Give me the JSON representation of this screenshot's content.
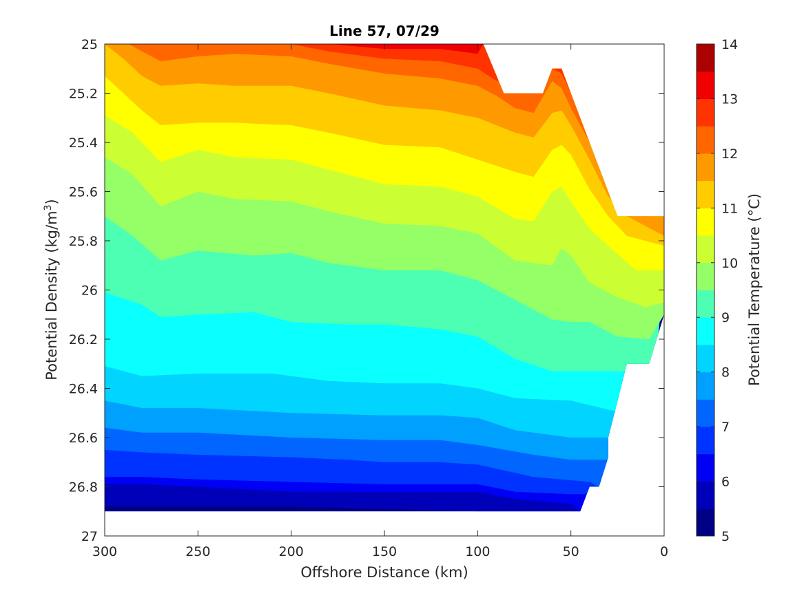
{
  "chart_data": {
    "type": "filled-contour",
    "title": "Line 57, 07/29",
    "xlabel": "Offshore Distance (km)",
    "ylabel": "Potential Density (kg/m",
    "ylabel_sup": "3",
    "ylabel_close": ")",
    "colorbar_label": "Potential Temperature (°C)",
    "x_reversed": true,
    "y_reversed": true,
    "xlim": [
      0,
      300
    ],
    "ylim": [
      25,
      27
    ],
    "x_ticks": [
      "300",
      "250",
      "200",
      "150",
      "100",
      "50",
      "0"
    ],
    "y_ticks": [
      "25",
      "25.2",
      "25.4",
      "25.6",
      "25.8",
      "26",
      "26.2",
      "26.4",
      "26.6",
      "26.8",
      "27"
    ],
    "colorbar_ticks": [
      "5",
      "6",
      "7",
      "8",
      "9",
      "10",
      "11",
      "12",
      "13",
      "14"
    ],
    "colorbar_range": [
      5,
      14
    ],
    "levels_step": 0.5,
    "colors": [
      "#000085",
      "#0000b8",
      "#0000f5",
      "#0033ff",
      "#0066ff",
      "#00a0ff",
      "#00d4ff",
      "#0affff",
      "#4dffb3",
      "#94ff66",
      "#ccff33",
      "#ffff00",
      "#ffcc00",
      "#ff9900",
      "#ff6600",
      "#ff3300",
      "#f00000",
      "#ad0000"
    ],
    "data_envelope": [
      [
        300,
        25.0
      ],
      [
        97,
        25.0
      ],
      [
        86,
        25.2
      ],
      [
        65,
        25.2
      ],
      [
        60,
        25.1
      ],
      [
        55,
        25.1
      ],
      [
        25,
        25.7
      ],
      [
        0,
        25.7
      ],
      [
        0,
        26.1
      ],
      [
        8,
        26.3
      ],
      [
        20,
        26.3
      ],
      [
        30,
        26.6
      ],
      [
        30,
        26.68
      ],
      [
        35,
        26.8
      ],
      [
        40,
        26.8
      ],
      [
        45,
        26.9
      ],
      [
        300,
        26.9
      ]
    ],
    "isotherms": [
      {
        "temp": 5.5,
        "points": [
          [
            300,
            26.88
          ],
          [
            200,
            26.88
          ],
          [
            150,
            26.89
          ],
          [
            100,
            26.9
          ],
          [
            45,
            26.9
          ]
        ]
      },
      {
        "temp": 6.0,
        "points": [
          [
            300,
            26.79
          ],
          [
            280,
            26.79
          ],
          [
            250,
            26.8
          ],
          [
            200,
            26.82
          ],
          [
            150,
            26.82
          ],
          [
            100,
            26.82
          ],
          [
            80,
            26.85
          ],
          [
            50,
            26.87
          ],
          [
            45,
            26.9
          ]
        ]
      },
      {
        "temp": 6.5,
        "points": [
          [
            300,
            26.76
          ],
          [
            280,
            26.76
          ],
          [
            250,
            26.77
          ],
          [
            200,
            26.78
          ],
          [
            150,
            26.79
          ],
          [
            100,
            26.79
          ],
          [
            80,
            26.82
          ],
          [
            50,
            26.83
          ],
          [
            38,
            26.83
          ],
          [
            35,
            26.83
          ]
        ]
      },
      {
        "temp": 7.0,
        "points": [
          [
            300,
            26.65
          ],
          [
            280,
            26.66
          ],
          [
            250,
            26.67
          ],
          [
            200,
            26.68
          ],
          [
            170,
            26.69
          ],
          [
            150,
            26.7
          ],
          [
            120,
            26.7
          ],
          [
            100,
            26.71
          ],
          [
            70,
            26.76
          ],
          [
            40,
            26.78
          ],
          [
            35,
            26.8
          ]
        ]
      },
      {
        "temp": 7.5,
        "points": [
          [
            300,
            26.56
          ],
          [
            280,
            26.58
          ],
          [
            250,
            26.58
          ],
          [
            200,
            26.6
          ],
          [
            150,
            26.61
          ],
          [
            120,
            26.61
          ],
          [
            100,
            26.63
          ],
          [
            70,
            26.67
          ],
          [
            50,
            26.69
          ],
          [
            33,
            26.69
          ]
        ]
      },
      {
        "temp": 8.0,
        "points": [
          [
            300,
            26.45
          ],
          [
            280,
            26.48
          ],
          [
            250,
            26.48
          ],
          [
            200,
            26.5
          ],
          [
            150,
            26.51
          ],
          [
            120,
            26.51
          ],
          [
            100,
            26.52
          ],
          [
            80,
            26.57
          ],
          [
            50,
            26.6
          ],
          [
            30,
            26.6
          ]
        ]
      },
      {
        "temp": 8.5,
        "points": [
          [
            300,
            26.31
          ],
          [
            280,
            26.35
          ],
          [
            250,
            26.34
          ],
          [
            210,
            26.34
          ],
          [
            180,
            26.37
          ],
          [
            150,
            26.38
          ],
          [
            120,
            26.38
          ],
          [
            100,
            26.4
          ],
          [
            80,
            26.44
          ],
          [
            50,
            26.45
          ],
          [
            28,
            26.49
          ]
        ]
      },
      {
        "temp": 9.0,
        "points": [
          [
            300,
            26.01
          ],
          [
            280,
            26.06
          ],
          [
            270,
            26.11
          ],
          [
            250,
            26.1
          ],
          [
            220,
            26.09
          ],
          [
            200,
            26.13
          ],
          [
            170,
            26.14
          ],
          [
            150,
            26.14
          ],
          [
            120,
            26.16
          ],
          [
            100,
            26.19
          ],
          [
            80,
            26.28
          ],
          [
            60,
            26.33
          ],
          [
            40,
            26.33
          ],
          [
            20,
            26.33
          ]
        ]
      },
      {
        "temp": 9.5,
        "points": [
          [
            300,
            25.7
          ],
          [
            285,
            25.78
          ],
          [
            270,
            25.88
          ],
          [
            250,
            25.84
          ],
          [
            220,
            25.86
          ],
          [
            200,
            25.85
          ],
          [
            180,
            25.89
          ],
          [
            150,
            25.92
          ],
          [
            120,
            25.92
          ],
          [
            100,
            25.96
          ],
          [
            80,
            26.04
          ],
          [
            60,
            26.12
          ],
          [
            50,
            26.13
          ],
          [
            40,
            26.13
          ],
          [
            25,
            26.19
          ],
          [
            8,
            26.2
          ],
          [
            0,
            26.1
          ]
        ]
      },
      {
        "temp": 10.0,
        "points": [
          [
            300,
            25.46
          ],
          [
            285,
            25.53
          ],
          [
            270,
            25.66
          ],
          [
            250,
            25.6
          ],
          [
            230,
            25.63
          ],
          [
            200,
            25.64
          ],
          [
            180,
            25.68
          ],
          [
            150,
            25.73
          ],
          [
            120,
            25.74
          ],
          [
            100,
            25.77
          ],
          [
            80,
            25.88
          ],
          [
            60,
            25.9
          ],
          [
            55,
            25.83
          ],
          [
            50,
            25.86
          ],
          [
            40,
            25.97
          ],
          [
            25,
            26.03
          ],
          [
            10,
            26.07
          ],
          [
            0,
            26.05
          ]
        ]
      },
      {
        "temp": 10.5,
        "points": [
          [
            300,
            25.29
          ],
          [
            285,
            25.36
          ],
          [
            270,
            25.48
          ],
          [
            250,
            25.43
          ],
          [
            230,
            25.46
          ],
          [
            200,
            25.47
          ],
          [
            180,
            25.51
          ],
          [
            150,
            25.57
          ],
          [
            120,
            25.58
          ],
          [
            100,
            25.62
          ],
          [
            80,
            25.71
          ],
          [
            70,
            25.72
          ],
          [
            60,
            25.6
          ],
          [
            55,
            25.58
          ],
          [
            50,
            25.64
          ],
          [
            40,
            25.75
          ],
          [
            30,
            25.82
          ],
          [
            15,
            25.92
          ],
          [
            0,
            25.92
          ]
        ]
      },
      {
        "temp": 11.0,
        "points": [
          [
            300,
            25.13
          ],
          [
            290,
            25.2
          ],
          [
            280,
            25.27
          ],
          [
            270,
            25.33
          ],
          [
            250,
            25.32
          ],
          [
            230,
            25.32
          ],
          [
            200,
            25.33
          ],
          [
            180,
            25.36
          ],
          [
            150,
            25.41
          ],
          [
            120,
            25.42
          ],
          [
            100,
            25.47
          ],
          [
            80,
            25.52
          ],
          [
            70,
            25.54
          ],
          [
            60,
            25.43
          ],
          [
            55,
            25.41
          ],
          [
            50,
            25.45
          ],
          [
            40,
            25.59
          ],
          [
            30,
            25.7
          ],
          [
            20,
            25.78
          ],
          [
            0,
            25.82
          ]
        ]
      },
      {
        "temp": 11.5,
        "points": [
          [
            300,
            25.0
          ],
          [
            290,
            25.06
          ],
          [
            280,
            25.13
          ],
          [
            270,
            25.17
          ],
          [
            250,
            25.16
          ],
          [
            230,
            25.17
          ],
          [
            200,
            25.17
          ],
          [
            180,
            25.2
          ],
          [
            150,
            25.25
          ],
          [
            120,
            25.27
          ],
          [
            100,
            25.3
          ],
          [
            80,
            25.36
          ],
          [
            70,
            25.38
          ],
          [
            60,
            25.28
          ],
          [
            55,
            25.27
          ],
          [
            50,
            25.33
          ],
          [
            40,
            25.47
          ],
          [
            30,
            25.62
          ],
          [
            25,
            25.66
          ],
          [
            20,
            25.7
          ],
          [
            5,
            25.76
          ],
          [
            0,
            25.78
          ]
        ]
      },
      {
        "temp": 12.0,
        "points": [
          [
            287,
            25.0
          ],
          [
            280,
            25.03
          ],
          [
            270,
            25.07
          ],
          [
            250,
            25.05
          ],
          [
            230,
            25.04
          ],
          [
            200,
            25.05
          ],
          [
            180,
            25.08
          ],
          [
            150,
            25.12
          ],
          [
            120,
            25.14
          ],
          [
            100,
            25.17
          ],
          [
            90,
            25.21
          ],
          [
            80,
            25.26
          ],
          [
            70,
            25.28
          ],
          [
            60,
            25.15
          ],
          [
            55,
            25.18
          ],
          [
            50,
            25.26
          ],
          [
            40,
            25.4
          ],
          [
            30,
            25.54
          ]
        ]
      },
      {
        "temp": 12.5,
        "points": [
          [
            250,
            25.0
          ],
          [
            200,
            25.0
          ],
          [
            180,
            25.03
          ],
          [
            150,
            25.06
          ],
          [
            120,
            25.07
          ],
          [
            100,
            25.1
          ],
          [
            90,
            25.15
          ],
          [
            60,
            25.1
          ],
          [
            55,
            25.12
          ],
          [
            50,
            25.2
          ],
          [
            40,
            25.35
          ]
        ]
      },
      {
        "temp": 13.0,
        "points": [
          [
            179,
            25.0
          ],
          [
            150,
            25.02
          ],
          [
            120,
            25.02
          ],
          [
            100,
            25.04
          ],
          [
            97,
            25.0
          ]
        ]
      }
    ]
  }
}
